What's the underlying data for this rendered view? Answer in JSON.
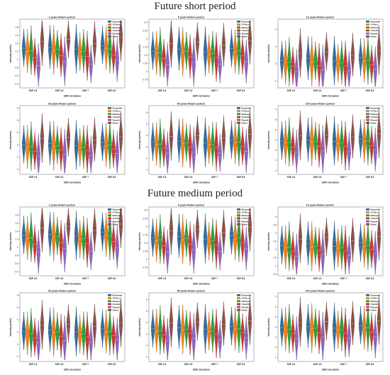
{
  "sections": [
    {
      "title": "Future short period"
    },
    {
      "title": "Future medium period"
    }
  ],
  "series_colors": [
    "#2f6c9f",
    "#f07f12",
    "#2e9a3c",
    "#c83630",
    "#8c63bd",
    "#8b5046"
  ],
  "chart_data": [
    {
      "type": "violin",
      "section": "Future short period",
      "title": "2 years Return period",
      "xlabel": "SSPs Scenarios",
      "ylabel": "Intensity (mm/hr)",
      "categories": [
        "SSP 2.6",
        "SSP 4.5",
        "SSP 7",
        "SSP 8.5"
      ],
      "ylim": [
        0.3,
        2.0
      ],
      "yticks": [
        0.4,
        0.6,
        0.8,
        1.0,
        1.2,
        1.4,
        1.6,
        1.8
      ],
      "legend": "top-right",
      "series": [
        {
          "name": "Buraydah",
          "values": [
            1.28,
            1.3,
            1.25,
            1.35
          ]
        },
        {
          "name": "Al Rass",
          "values": [
            1.2,
            1.22,
            1.18,
            1.28
          ]
        },
        {
          "name": "Badayea",
          "values": [
            1.22,
            1.25,
            1.2,
            1.26
          ]
        },
        {
          "name": "Unaizah",
          "values": [
            1.05,
            1.1,
            1.08,
            1.12
          ]
        },
        {
          "name": "Riyadh",
          "values": [
            0.85,
            0.95,
            0.88,
            0.98
          ]
        },
        {
          "name": "Dubai",
          "values": [
            1.45,
            1.5,
            1.4,
            1.55
          ]
        }
      ]
    },
    {
      "type": "violin",
      "section": "Future short period",
      "title": "5 years Return period",
      "xlabel": "SSPs Scenarios",
      "ylabel": "Intensity (mm/hr)",
      "categories": [
        "SSP 2.6",
        "SSP 4.5",
        "SSP 7",
        "SSP 8.5"
      ],
      "ylim": [
        0.5,
        2.6
      ],
      "yticks": [
        0.75,
        1.0,
        1.25,
        1.5,
        1.75,
        2.0,
        2.25,
        2.5
      ],
      "legend": "top-right",
      "series": [
        {
          "name": "Buraydah",
          "values": [
            1.62,
            1.68,
            1.6,
            1.7
          ]
        },
        {
          "name": "Al Rass",
          "values": [
            1.55,
            1.58,
            1.52,
            1.6
          ]
        },
        {
          "name": "Badayea",
          "values": [
            1.58,
            1.62,
            1.55,
            1.64
          ]
        },
        {
          "name": "Unaizah",
          "values": [
            1.4,
            1.45,
            1.42,
            1.48
          ]
        },
        {
          "name": "Riyadh",
          "values": [
            1.2,
            1.28,
            1.22,
            1.3
          ]
        },
        {
          "name": "Dubai",
          "values": [
            1.85,
            1.9,
            1.8,
            1.95
          ]
        }
      ]
    },
    {
      "type": "violin",
      "section": "Future short period",
      "title": "10 years Return period",
      "xlabel": "SSPs Scenarios",
      "ylabel": "Intensity (mm/hr)",
      "categories": [
        "SSP 2.6",
        "SSP 4.5",
        "SSP 7",
        "SSP 8.5"
      ],
      "ylim": [
        0.6,
        4.6
      ],
      "yticks": [
        1,
        2,
        3,
        4
      ],
      "legend": "top-right",
      "series": [
        {
          "name": "Buraydah",
          "values": [
            2.2,
            2.3,
            2.15,
            2.35
          ]
        },
        {
          "name": "Al Rass",
          "values": [
            2.05,
            2.1,
            2.0,
            2.15
          ]
        },
        {
          "name": "Badayea",
          "values": [
            2.1,
            2.15,
            2.05,
            2.2
          ]
        },
        {
          "name": "Unaizah",
          "values": [
            1.85,
            1.9,
            1.88,
            1.95
          ]
        },
        {
          "name": "Riyadh",
          "values": [
            1.55,
            1.65,
            1.6,
            1.7
          ]
        },
        {
          "name": "Dubai",
          "values": [
            2.6,
            2.7,
            2.5,
            2.75
          ]
        }
      ]
    },
    {
      "type": "violin",
      "section": "Future short period",
      "title": "25 years Return period",
      "xlabel": "SSPs Scenarios",
      "ylabel": "Intensity (mm/hr)",
      "categories": [
        "SSP 2.6",
        "SSP 4.5",
        "SSP 7",
        "SSP 8.5"
      ],
      "ylim": [
        0.6,
        6.2
      ],
      "yticks": [
        1,
        2,
        3,
        4,
        5,
        6
      ],
      "legend": "top-right",
      "series": [
        {
          "name": "Buraydah",
          "values": [
            3.0,
            3.1,
            2.95,
            3.2
          ]
        },
        {
          "name": "Al Rass",
          "values": [
            2.8,
            2.9,
            2.75,
            2.95
          ]
        },
        {
          "name": "Badayea",
          "values": [
            2.85,
            2.95,
            2.8,
            3.0
          ]
        },
        {
          "name": "Unaizah",
          "values": [
            2.5,
            2.6,
            2.55,
            2.65
          ]
        },
        {
          "name": "Riyadh",
          "values": [
            2.1,
            2.25,
            2.15,
            2.3
          ]
        },
        {
          "name": "Dubai",
          "values": [
            3.5,
            3.6,
            3.4,
            3.7
          ]
        }
      ]
    },
    {
      "type": "violin",
      "section": "Future short period",
      "title": "50 years Return period",
      "xlabel": "SSPs Scenarios",
      "ylabel": "Intensity (mm/hr)",
      "categories": [
        "SSP 2.6",
        "SSP 4.5",
        "SSP 7",
        "SSP 8.5"
      ],
      "ylim": [
        0.6,
        6.6
      ],
      "yticks": [
        1,
        2,
        3,
        4,
        5,
        6
      ],
      "legend": "top-right",
      "series": [
        {
          "name": "Buraydah",
          "values": [
            3.4,
            3.5,
            3.35,
            3.6
          ]
        },
        {
          "name": "Al Rass",
          "values": [
            3.2,
            3.3,
            3.15,
            3.35
          ]
        },
        {
          "name": "Badayea",
          "values": [
            3.25,
            3.35,
            3.2,
            3.4
          ]
        },
        {
          "name": "Unaizah",
          "values": [
            2.9,
            3.0,
            2.95,
            3.05
          ]
        },
        {
          "name": "Riyadh",
          "values": [
            2.4,
            2.55,
            2.45,
            2.6
          ]
        },
        {
          "name": "Dubai",
          "values": [
            3.9,
            4.0,
            3.8,
            4.1
          ]
        }
      ]
    },
    {
      "type": "violin",
      "section": "Future short period",
      "title": "100 years Return period",
      "xlabel": "SSPs Scenarios",
      "ylabel": "Intensity (mm/hr)",
      "categories": [
        "SSP 2.6",
        "SSP 4.5",
        "SSP 7",
        "SSP 8.5"
      ],
      "ylim": [
        0.6,
        7.4
      ],
      "yticks": [
        1,
        2,
        3,
        4,
        5,
        6,
        7
      ],
      "legend": "top-right",
      "series": [
        {
          "name": "Buraydah",
          "values": [
            3.9,
            4.0,
            3.85,
            4.1
          ]
        },
        {
          "name": "Al Rass",
          "values": [
            3.7,
            3.8,
            3.65,
            3.85
          ]
        },
        {
          "name": "Badayea",
          "values": [
            3.75,
            3.85,
            3.7,
            3.9
          ]
        },
        {
          "name": "Unaizah",
          "values": [
            3.3,
            3.4,
            3.35,
            3.45
          ]
        },
        {
          "name": "Riyadh",
          "values": [
            2.8,
            2.95,
            2.85,
            3.0
          ]
        },
        {
          "name": "Dubai",
          "values": [
            4.4,
            4.5,
            4.3,
            4.6
          ]
        }
      ]
    },
    {
      "type": "violin",
      "section": "Future medium period",
      "title": "2 years Return period",
      "xlabel": "SSPs Scenarios",
      "ylabel": "Intensity (mm/hr)",
      "categories": [
        "SSP 2.6",
        "SSP 4.5",
        "SSP 7",
        "SSP 8.5"
      ],
      "ylim": [
        0.3,
        2.0
      ],
      "yticks": [
        0.4,
        0.6,
        0.8,
        1.0,
        1.2,
        1.4,
        1.6,
        1.8
      ],
      "legend": "top-right",
      "series": [
        {
          "name": "Buraydah",
          "values": [
            1.3,
            1.32,
            1.28,
            1.38
          ]
        },
        {
          "name": "Al Rass",
          "values": [
            1.22,
            1.25,
            1.2,
            1.3
          ]
        },
        {
          "name": "Badayea",
          "values": [
            1.24,
            1.27,
            1.22,
            1.28
          ]
        },
        {
          "name": "Unaizah",
          "values": [
            1.08,
            1.12,
            1.1,
            1.15
          ]
        },
        {
          "name": "Riyadh",
          "values": [
            0.88,
            0.98,
            0.9,
            1.0
          ]
        },
        {
          "name": "Dubai",
          "values": [
            1.48,
            1.52,
            1.42,
            1.58
          ]
        }
      ]
    },
    {
      "type": "violin",
      "section": "Future medium period",
      "title": "5 years Return period",
      "xlabel": "SSPs Scenarios",
      "ylabel": "Intensity (mm/hr)",
      "categories": [
        "SSP 2.6",
        "SSP 4.5",
        "SSP 7",
        "SSP 8.5"
      ],
      "ylim": [
        0.5,
        2.6
      ],
      "yticks": [
        0.75,
        1.0,
        1.25,
        1.5,
        1.75,
        2.0,
        2.25,
        2.5
      ],
      "legend": "top-right",
      "series": [
        {
          "name": "Buraydah",
          "values": [
            1.65,
            1.7,
            1.62,
            1.72
          ]
        },
        {
          "name": "Al Rass",
          "values": [
            1.57,
            1.6,
            1.54,
            1.62
          ]
        },
        {
          "name": "Badayea",
          "values": [
            1.6,
            1.64,
            1.57,
            1.66
          ]
        },
        {
          "name": "Unaizah",
          "values": [
            1.42,
            1.47,
            1.44,
            1.5
          ]
        },
        {
          "name": "Riyadh",
          "values": [
            1.22,
            1.3,
            1.24,
            1.32
          ]
        },
        {
          "name": "Dubai",
          "values": [
            1.88,
            1.92,
            1.82,
            1.98
          ]
        }
      ]
    },
    {
      "type": "violin",
      "section": "Future medium period",
      "title": "10 years Return period",
      "xlabel": "SSPs Scenarios",
      "ylabel": "Intensity (mm/hr)",
      "categories": [
        "SSP 2.6",
        "SSP 4.5",
        "SSP 7",
        "SSP 8.5"
      ],
      "ylim": [
        0.4,
        4.6
      ],
      "yticks": [
        0.5,
        1.0,
        1.5,
        2.0,
        2.5,
        3.0,
        3.5,
        4.0
      ],
      "legend": "top-right",
      "series": [
        {
          "name": "Buraydah",
          "values": [
            2.25,
            2.35,
            2.2,
            2.4
          ]
        },
        {
          "name": "Al Rass",
          "values": [
            2.1,
            2.15,
            2.05,
            2.2
          ]
        },
        {
          "name": "Badayea",
          "values": [
            2.15,
            2.2,
            2.1,
            2.25
          ]
        },
        {
          "name": "Unaizah",
          "values": [
            1.9,
            1.95,
            1.92,
            2.0
          ]
        },
        {
          "name": "Riyadh",
          "values": [
            1.6,
            1.7,
            1.65,
            1.75
          ]
        },
        {
          "name": "Dubai",
          "values": [
            2.65,
            2.75,
            2.55,
            2.8
          ]
        }
      ]
    },
    {
      "type": "violin",
      "section": "Future medium period",
      "title": "25 years Return period",
      "xlabel": "SSPs Scenarios",
      "ylabel": "Intensity (mm/hr)",
      "categories": [
        "SSP 2.6",
        "SSP 4.5",
        "SSP 7",
        "SSP 8.5"
      ],
      "ylim": [
        0.6,
        6.2
      ],
      "yticks": [
        1,
        2,
        3,
        4,
        5,
        6
      ],
      "legend": "top-right",
      "series": [
        {
          "name": "Buraydah",
          "values": [
            3.05,
            3.15,
            3.0,
            3.25
          ]
        },
        {
          "name": "Al Rass",
          "values": [
            2.85,
            2.95,
            2.8,
            3.0
          ]
        },
        {
          "name": "Badayea",
          "values": [
            2.9,
            3.0,
            2.85,
            3.05
          ]
        },
        {
          "name": "Unaizah",
          "values": [
            2.55,
            2.65,
            2.6,
            2.7
          ]
        },
        {
          "name": "Riyadh",
          "values": [
            2.15,
            2.3,
            2.2,
            2.35
          ]
        },
        {
          "name": "Dubai",
          "values": [
            3.55,
            3.65,
            3.45,
            3.75
          ]
        }
      ]
    },
    {
      "type": "violin",
      "section": "Future medium period",
      "title": "50 years Return period",
      "xlabel": "SSPs Scenarios",
      "ylabel": "Intensity (mm/hr)",
      "categories": [
        "SSP 2.6",
        "SSP 4.5",
        "SSP 7",
        "SSP 8.5"
      ],
      "ylim": [
        0.6,
        6.6
      ],
      "yticks": [
        1,
        2,
        3,
        4,
        5,
        6
      ],
      "legend": "top-right",
      "series": [
        {
          "name": "Buraydah",
          "values": [
            3.45,
            3.55,
            3.4,
            3.65
          ]
        },
        {
          "name": "Al Rass",
          "values": [
            3.25,
            3.35,
            3.2,
            3.4
          ]
        },
        {
          "name": "Badayea",
          "values": [
            3.3,
            3.4,
            3.25,
            3.45
          ]
        },
        {
          "name": "Unaizah",
          "values": [
            2.95,
            3.05,
            3.0,
            3.1
          ]
        },
        {
          "name": "Riyadh",
          "values": [
            2.45,
            2.6,
            2.5,
            2.65
          ]
        },
        {
          "name": "Dubai",
          "values": [
            3.95,
            4.05,
            3.85,
            4.15
          ]
        }
      ]
    },
    {
      "type": "violin",
      "section": "Future medium period",
      "title": "100 years Return period",
      "xlabel": "SSPs Scenarios",
      "ylabel": "Intensity (mm/hr)",
      "categories": [
        "SSP 2.6",
        "SSP 4.5",
        "SSP 7",
        "SSP 8.5"
      ],
      "ylim": [
        0.6,
        7.4
      ],
      "yticks": [
        1,
        2,
        3,
        4,
        5,
        6,
        7
      ],
      "legend": "top-right",
      "series": [
        {
          "name": "Buraydah",
          "values": [
            3.95,
            4.05,
            3.9,
            4.15
          ]
        },
        {
          "name": "Al Rass",
          "values": [
            3.75,
            3.85,
            3.7,
            3.9
          ]
        },
        {
          "name": "Badayea",
          "values": [
            3.8,
            3.9,
            3.75,
            3.95
          ]
        },
        {
          "name": "Unaizah",
          "values": [
            3.35,
            3.45,
            3.4,
            3.5
          ]
        },
        {
          "name": "Riyadh",
          "values": [
            2.85,
            3.0,
            2.9,
            3.05
          ]
        },
        {
          "name": "Dubai",
          "values": [
            4.45,
            4.55,
            4.35,
            4.65
          ]
        }
      ]
    }
  ]
}
